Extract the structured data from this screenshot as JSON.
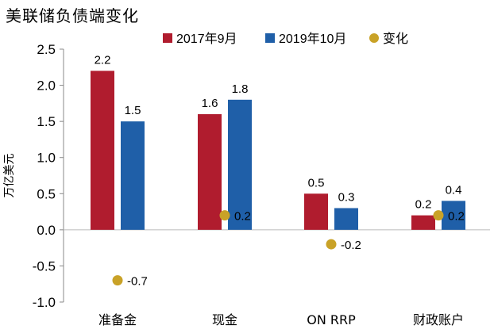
{
  "chart_data": {
    "type": "bar",
    "title": "美联储负债端变化",
    "ylabel": "万亿美元",
    "categories": [
      "准备金",
      "现金",
      "ON RRP",
      "财政账户"
    ],
    "series": [
      {
        "name": "2017年9月",
        "kind": "bar",
        "color": "#b01c2e",
        "values": [
          2.2,
          1.6,
          0.5,
          0.2
        ]
      },
      {
        "name": "2019年10月",
        "kind": "bar",
        "color": "#1f5fa8",
        "values": [
          1.5,
          1.8,
          0.3,
          0.4
        ]
      },
      {
        "name": "变化",
        "kind": "scatter",
        "color": "#c9a227",
        "values": [
          -0.7,
          0.2,
          -0.2,
          0.2
        ]
      }
    ],
    "display_values": {
      "2017年9月": [
        2.2,
        1.6,
        0.5,
        0.2
      ],
      "2019年10月": [
        1.5,
        1.8,
        0.3,
        0.4
      ],
      "变化": [
        -0.7,
        0.2,
        -0.2,
        0.2
      ]
    },
    "ylim": [
      -1.0,
      2.5
    ],
    "yticks": [
      "-1.0",
      "-0.5",
      "0.0",
      "0.5",
      "1.0",
      "1.5",
      "2.0",
      "2.5"
    ],
    "ytick_values": [
      -1.0,
      -0.5,
      0.0,
      0.5,
      1.0,
      1.5,
      2.0,
      2.5
    ],
    "grid": false,
    "legend_position": "top-center"
  }
}
